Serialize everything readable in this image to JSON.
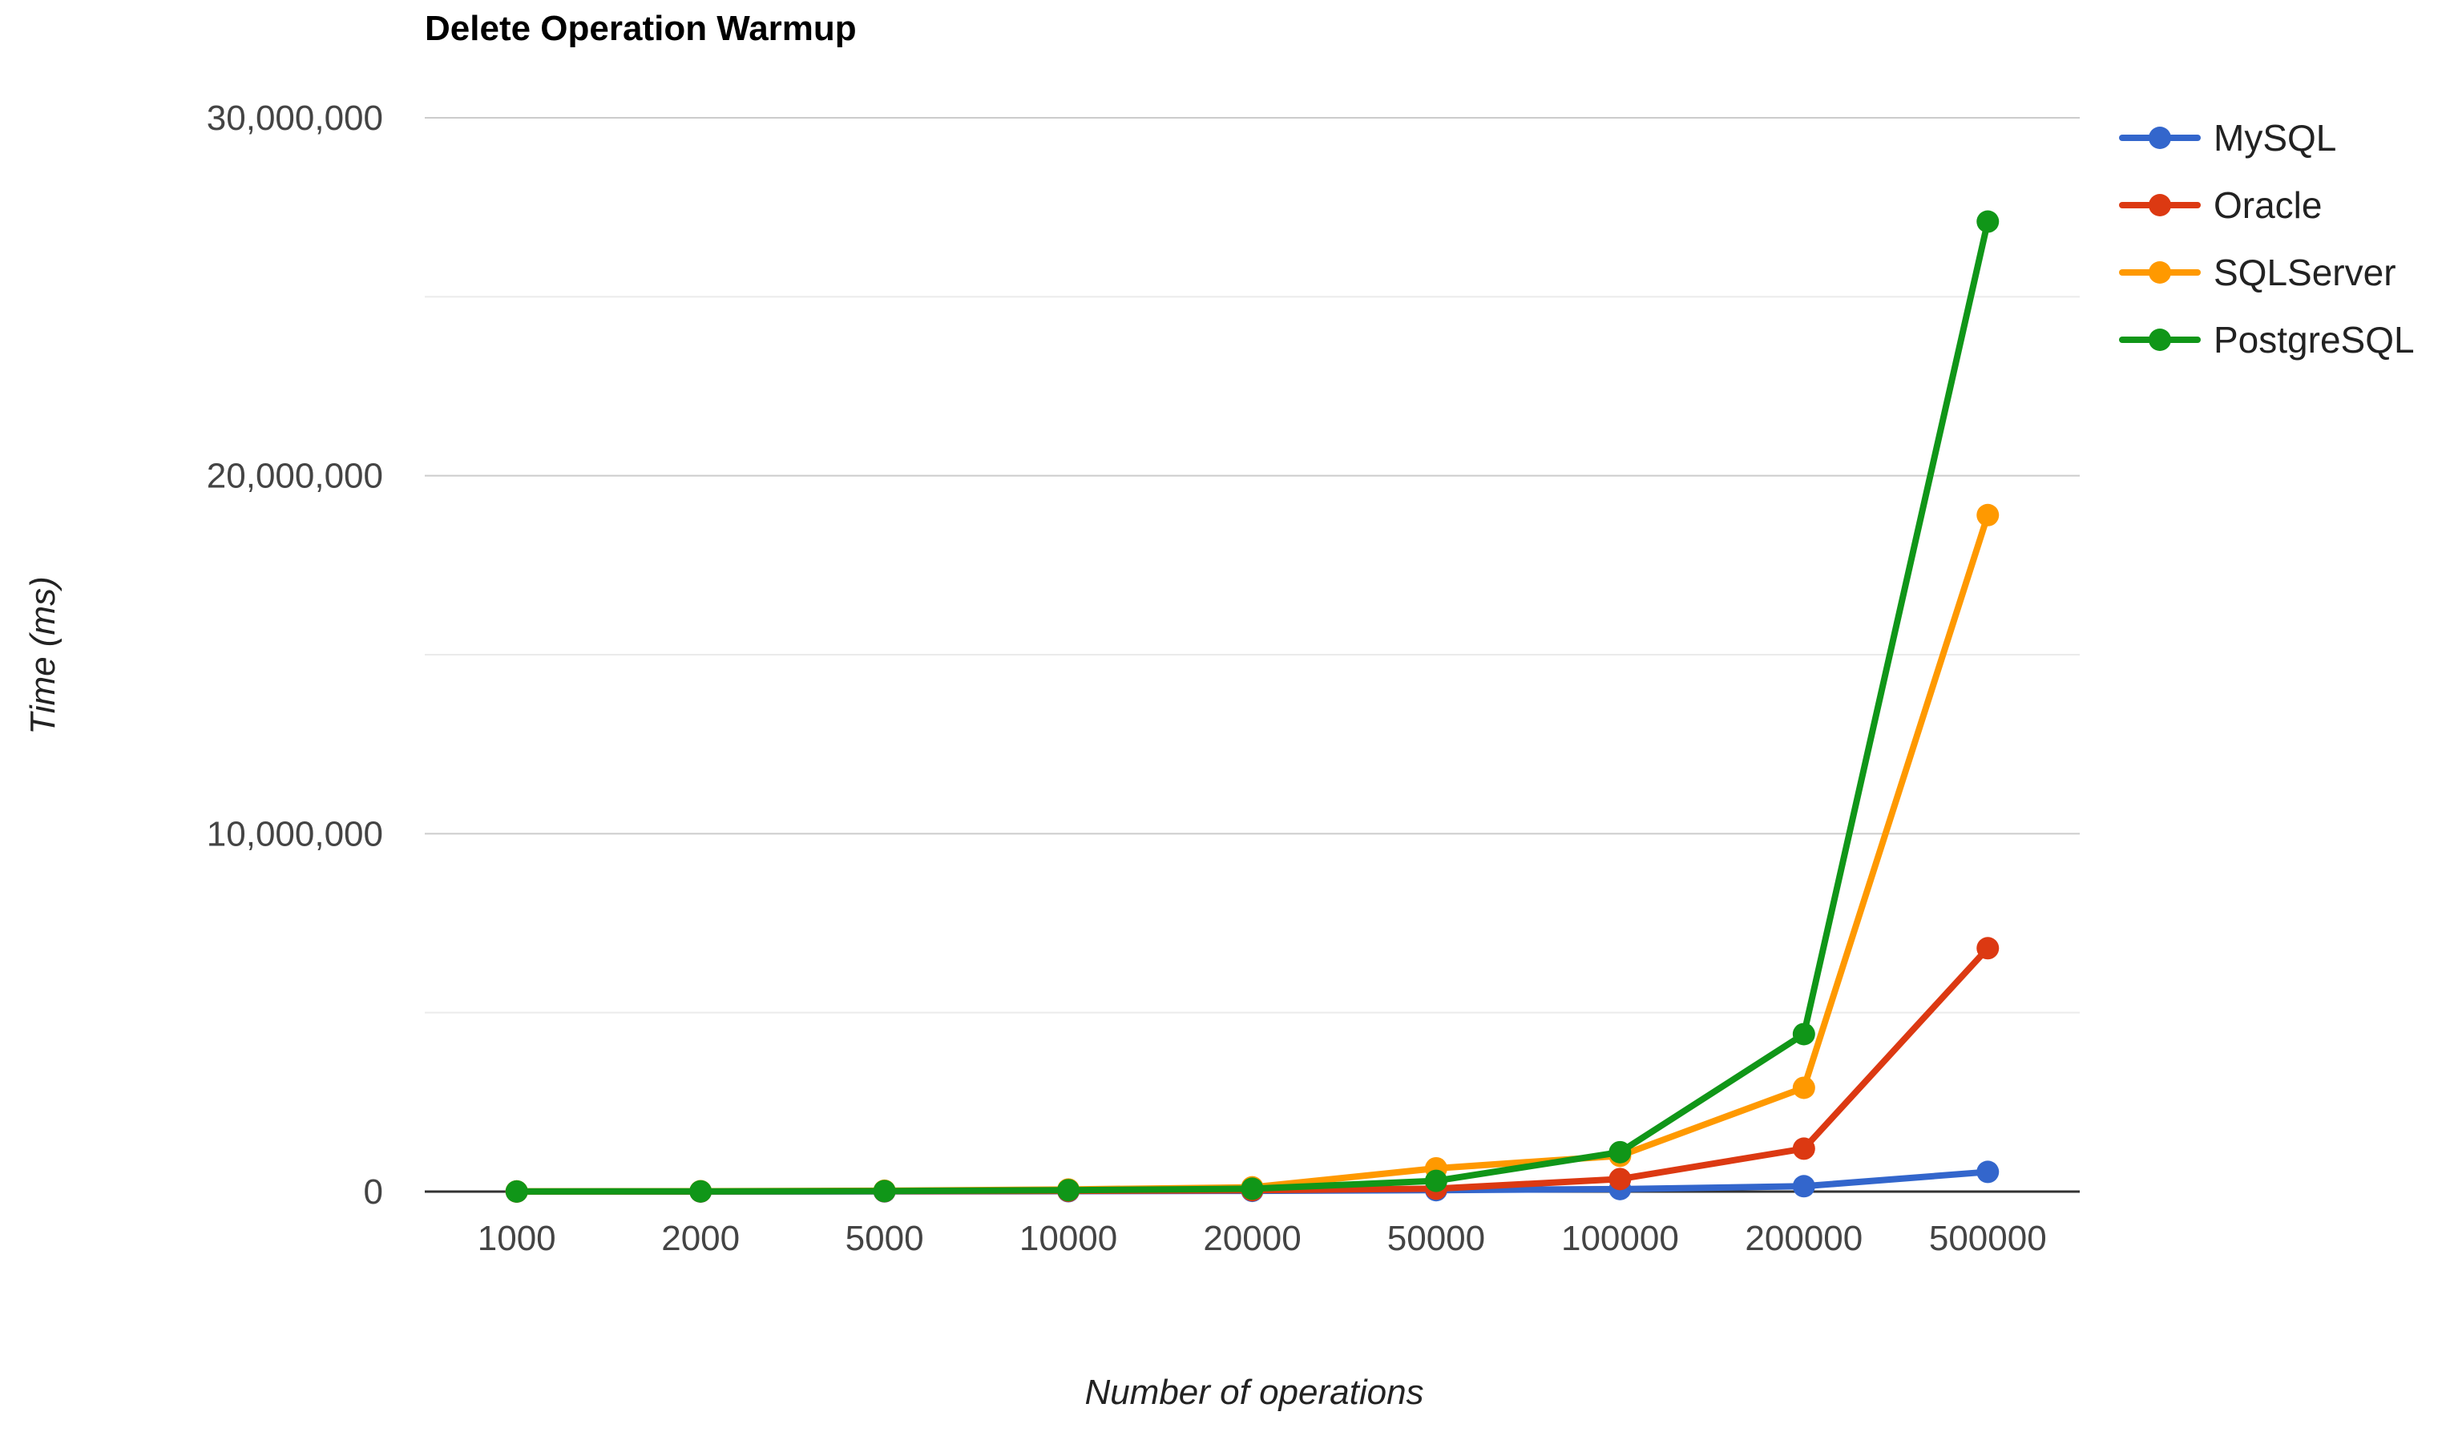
{
  "chart_data": {
    "type": "line",
    "title": "Delete Operation Warmup",
    "xlabel": "Number of operations",
    "ylabel": "Time (ms)",
    "categories": [
      "1000",
      "2000",
      "5000",
      "10000",
      "20000",
      "50000",
      "100000",
      "200000",
      "500000"
    ],
    "ylim": [
      0,
      30000000
    ],
    "y_ticks": [
      0,
      10000000,
      20000000,
      30000000
    ],
    "y_tick_labels": [
      "0",
      "10,000,000",
      "20,000,000",
      "30,000,000"
    ],
    "grid": true,
    "legend_position": "right",
    "series": [
      {
        "name": "MySQL",
        "color": "#3366cc",
        "values": [
          1000,
          2000,
          5000,
          10000,
          20000,
          40000,
          70000,
          150000,
          550000
        ]
      },
      {
        "name": "Oracle",
        "color": "#dc3912",
        "values": [
          2000,
          4000,
          10000,
          20000,
          40000,
          80000,
          350000,
          1200000,
          6800000
        ]
      },
      {
        "name": "SQLServer",
        "color": "#ff9900",
        "values": [
          5000,
          10000,
          25000,
          60000,
          120000,
          650000,
          1000000,
          2900000,
          18900000
        ]
      },
      {
        "name": "PostgreSQL",
        "color": "#109618",
        "values": [
          3000,
          6000,
          15000,
          40000,
          80000,
          300000,
          1100000,
          4400000,
          27100000
        ]
      }
    ]
  }
}
